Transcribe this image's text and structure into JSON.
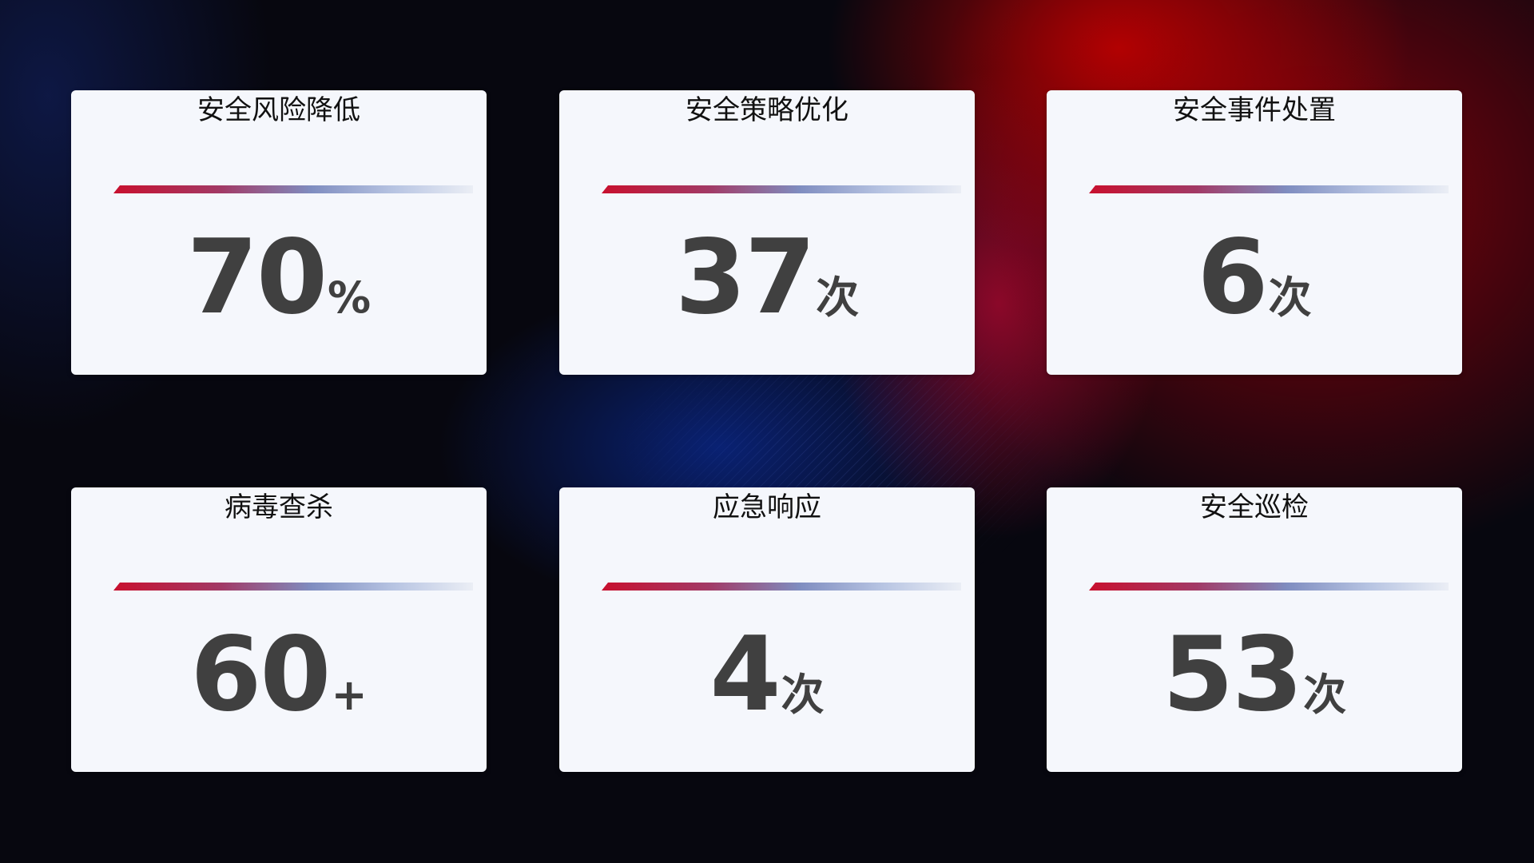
{
  "cards": [
    {
      "title": "安全风险降低",
      "value": "70",
      "unit": "%"
    },
    {
      "title": "安全策略优化",
      "value": "37",
      "unit": "次"
    },
    {
      "title": "安全事件处置",
      "value": "6",
      "unit": "次"
    },
    {
      "title": "病毒查杀",
      "value": "60",
      "unit": "+"
    },
    {
      "title": "应急响应",
      "value": "4",
      "unit": "次"
    },
    {
      "title": "安全巡检",
      "value": "53",
      "unit": "次"
    }
  ],
  "colors": {
    "accent_red": "#c8102e",
    "accent_blue": "#7f8dc0",
    "card_bg": "#f5f7fc",
    "value_text": "#404040"
  }
}
